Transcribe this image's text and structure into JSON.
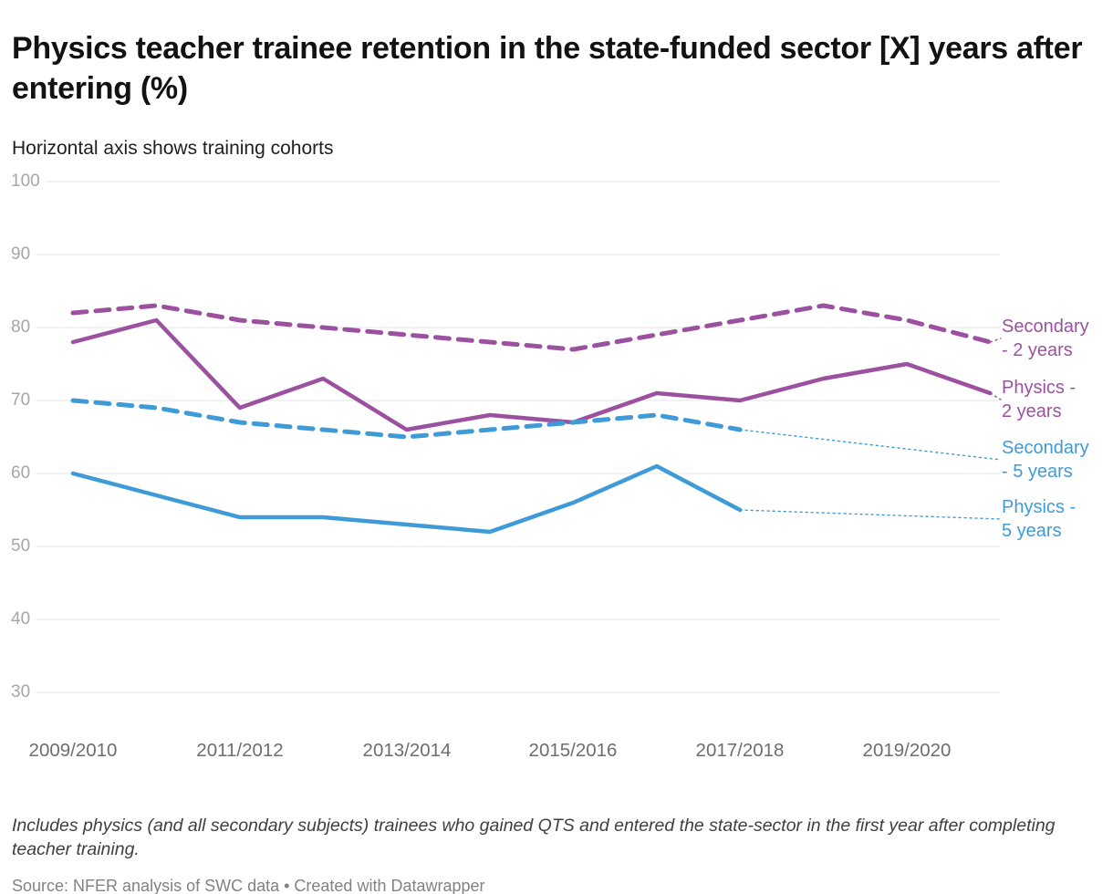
{
  "header": {
    "title": "Physics teacher trainee retention in the state-funded sector [X] years after entering (%)",
    "subtitle": "Horizontal axis shows training cohorts"
  },
  "chart_data": {
    "type": "line",
    "cohorts": [
      "2009/2010",
      "2010/2011",
      "2011/2012",
      "2012/2013",
      "2013/2014",
      "2014/2015",
      "2015/2016",
      "2016/2017",
      "2017/2018",
      "2018/2019",
      "2019/2020",
      "2020/2021"
    ],
    "x_tick_labels": [
      "2009/2010",
      "2011/2012",
      "2013/2014",
      "2015/2016",
      "2017/2018",
      "2019/2020"
    ],
    "yticks": [
      100,
      90,
      80,
      70,
      60,
      50,
      40,
      30
    ],
    "ylim": [
      30,
      100
    ],
    "grid": "horizontal",
    "legend_position": "right-of-lines",
    "series": [
      {
        "name": "Secondary - 2 years",
        "style": "dashed",
        "color": "#9b519f",
        "values": [
          82,
          83,
          81,
          80,
          79,
          78,
          77,
          79,
          81,
          83,
          81,
          78
        ]
      },
      {
        "name": "Physics - 2 years",
        "style": "solid",
        "color": "#9b519f",
        "values": [
          78,
          81,
          69,
          73,
          66,
          68,
          67,
          71,
          70,
          73,
          75,
          71
        ]
      },
      {
        "name": "Secondary - 5 years",
        "style": "dashed",
        "color": "#3f9bd8",
        "values": [
          70,
          69,
          67,
          66,
          65,
          66,
          67,
          68,
          66
        ]
      },
      {
        "name": "Physics - 5 years",
        "style": "solid",
        "color": "#3f9bd8",
        "values": [
          60,
          57,
          54,
          54,
          53,
          52,
          56,
          61,
          55
        ]
      }
    ]
  },
  "footer": {
    "note": "Includes physics (and all secondary subjects) trainees who gained QTS and entered the state-sector in the first year after completing teacher training.",
    "source": "Source: NFER analysis of SWC data • Created with Datawrapper"
  }
}
